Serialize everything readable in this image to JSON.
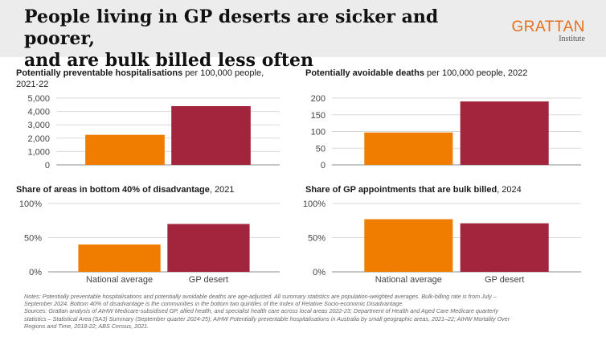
{
  "header": {
    "headline_line1": "People living in GP deserts are sicker and poorer,",
    "headline_line2": "and are bulk billed less often",
    "logo_word": "GRATTAN",
    "logo_sub": "Institute"
  },
  "colors": {
    "national": "#f07d00",
    "desert": "#a2253d",
    "grid": "#d9d9d9",
    "axis": "#8c8c8c"
  },
  "chart_data": [
    {
      "type": "bar",
      "title_bold": "Potentially preventable hospitalisations",
      "title_rest": " per 100,000 people,",
      "title_line2": "2021-22",
      "categories": [
        "National average",
        "GP desert"
      ],
      "values": [
        2250,
        4400
      ],
      "ylim": [
        0,
        5000
      ],
      "yticks": [
        0,
        1000,
        2000,
        3000,
        4000,
        5000
      ],
      "ytick_labels": [
        "0",
        "1,000",
        "2,000",
        "3,000",
        "4,000",
        "5,000"
      ],
      "show_xlabels": false
    },
    {
      "type": "bar",
      "title_bold": "Potentially avoidable deaths",
      "title_rest": " per 100,000 people, 2022",
      "title_line2": "",
      "categories": [
        "National average",
        "GP desert"
      ],
      "values": [
        97,
        190
      ],
      "ylim": [
        0,
        200
      ],
      "yticks": [
        0,
        50,
        100,
        150,
        200
      ],
      "ytick_labels": [
        "0",
        "50",
        "100",
        "150",
        "200"
      ],
      "show_xlabels": false
    },
    {
      "type": "bar",
      "title_bold": "Share of areas in bottom 40% of disadvantage",
      "title_rest": ", 2021",
      "title_line2": "",
      "categories": [
        "National average",
        "GP desert"
      ],
      "values": [
        40,
        70
      ],
      "ylim": [
        0,
        100
      ],
      "yticks": [
        0,
        50,
        100
      ],
      "ytick_labels": [
        "0%",
        "50%",
        "100%"
      ],
      "show_xlabels": true
    },
    {
      "type": "bar",
      "title_bold": "Share of GP appointments that are bulk billed",
      "title_rest": ", 2024",
      "title_line2": "",
      "categories": [
        "National average",
        "GP desert"
      ],
      "values": [
        77,
        71
      ],
      "ylim": [
        0,
        100
      ],
      "yticks": [
        0,
        50,
        100
      ],
      "ytick_labels": [
        "0%",
        "50%",
        "100%"
      ],
      "show_xlabels": true
    }
  ],
  "notes": {
    "line1": "Notes: Potentially preventable hospitalisations and potentially avoidable deaths are age-adjusted. All summary statistics are population-weighted averages. Bulk-billing rate is from July –",
    "line2": "September 2024. Bottom 40% of disadvantage is the communities in the bottom two quintiles of the Index of Relative Socio-economic Disadvantage.",
    "line3": "Sources: Grattan analysis of AIHW Medicare-subsidised GP, allied health, and specialist health care across local areas 2022-23; Department of Health and Aged Care Medicare quarterly",
    "line4": "statistics – Statistical Area (SA3) Summary (September quarter 2024-25); AIHW Potentially preventable hospitalisations in Australia by small geographic areas, 2021–22; AIHW Mortality Over",
    "line5": "Regions and Time, 2018-22; ABS Census, 2021."
  }
}
